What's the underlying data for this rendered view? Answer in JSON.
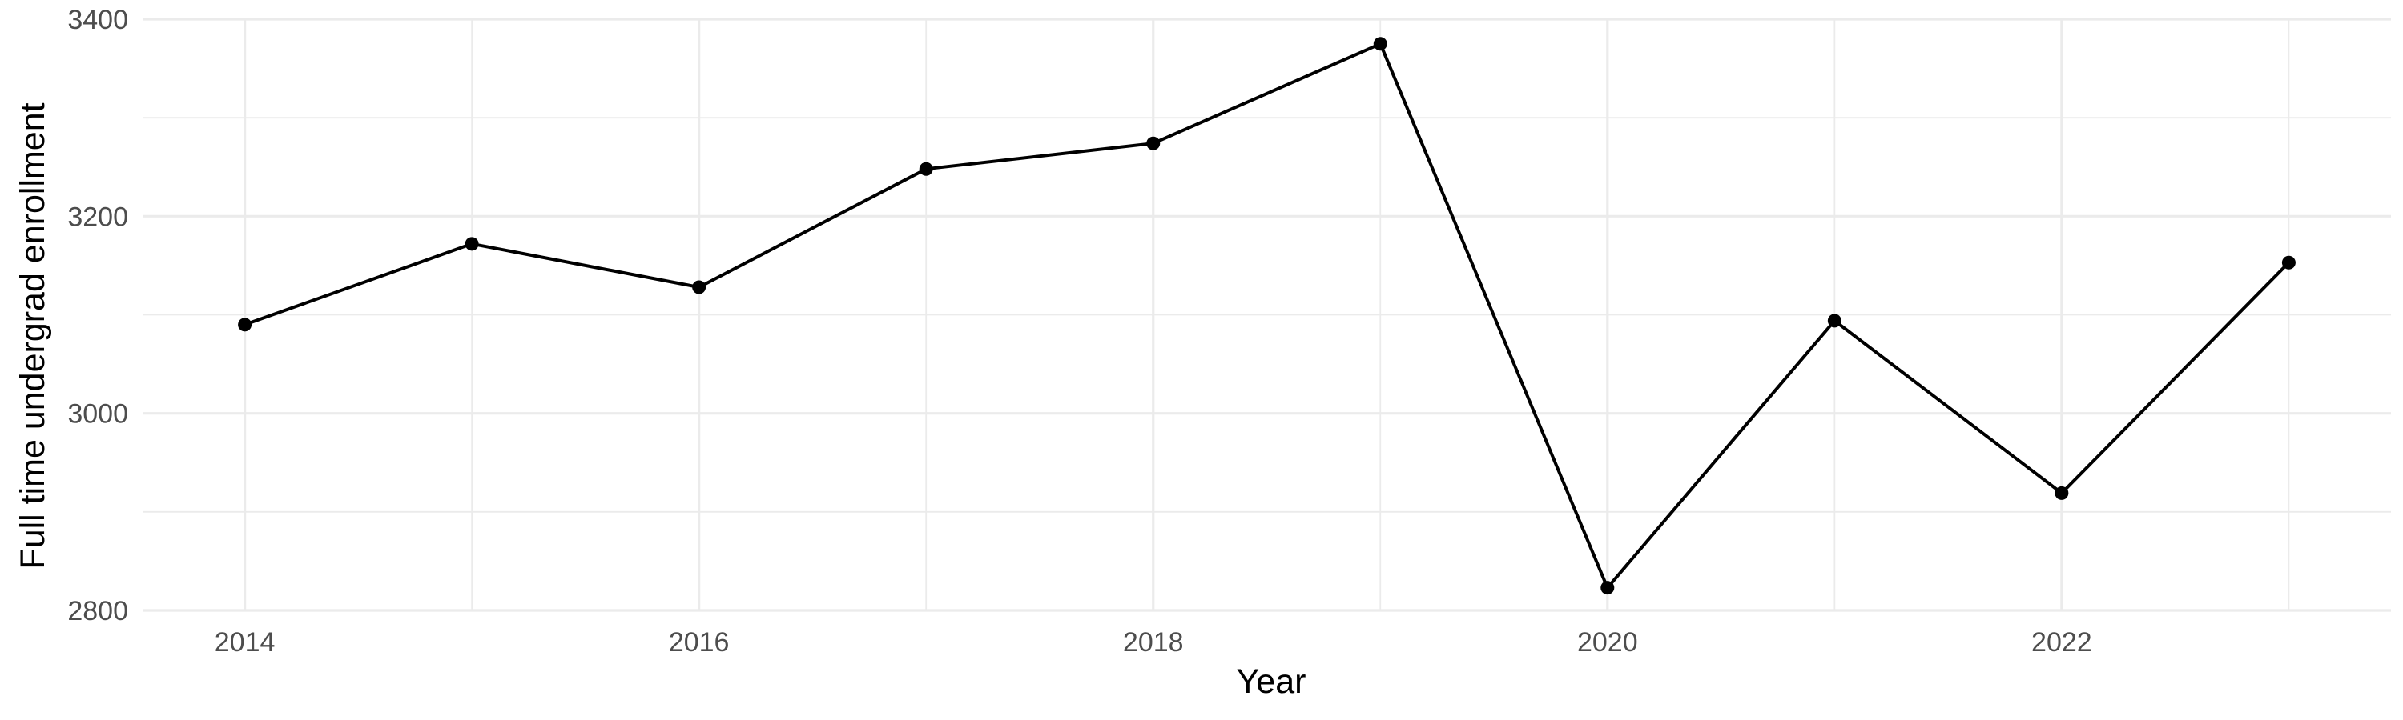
{
  "chart_data": {
    "type": "line",
    "title": "",
    "xlabel": "Year",
    "ylabel": "Full time undergrad enrollment",
    "x": [
      2014,
      2015,
      2016,
      2017,
      2018,
      2019,
      2020,
      2021,
      2022,
      2023
    ],
    "series": [
      {
        "name": "",
        "values": [
          3090,
          3172,
          3128,
          3248,
          3274,
          3375,
          2823,
          3094,
          2919,
          3153
        ]
      }
    ],
    "xlim": [
      2013.55,
      2023.45
    ],
    "ylim": [
      2800,
      3400
    ],
    "x_ticks": [
      2014,
      2016,
      2018,
      2020,
      2022
    ],
    "x_tick_labels": [
      "2014",
      "2016",
      "2018",
      "2020",
      "2022"
    ],
    "y_ticks": [
      2800,
      3000,
      3200,
      3400
    ],
    "y_tick_labels": [
      "2800",
      "3000",
      "3200",
      "3400"
    ],
    "grid": true,
    "legend": "none",
    "colors": {
      "line": "#000000",
      "point": "#000000",
      "grid": "#ebebeb",
      "tick_text": "#4d4d4d",
      "background": "#ffffff"
    }
  }
}
